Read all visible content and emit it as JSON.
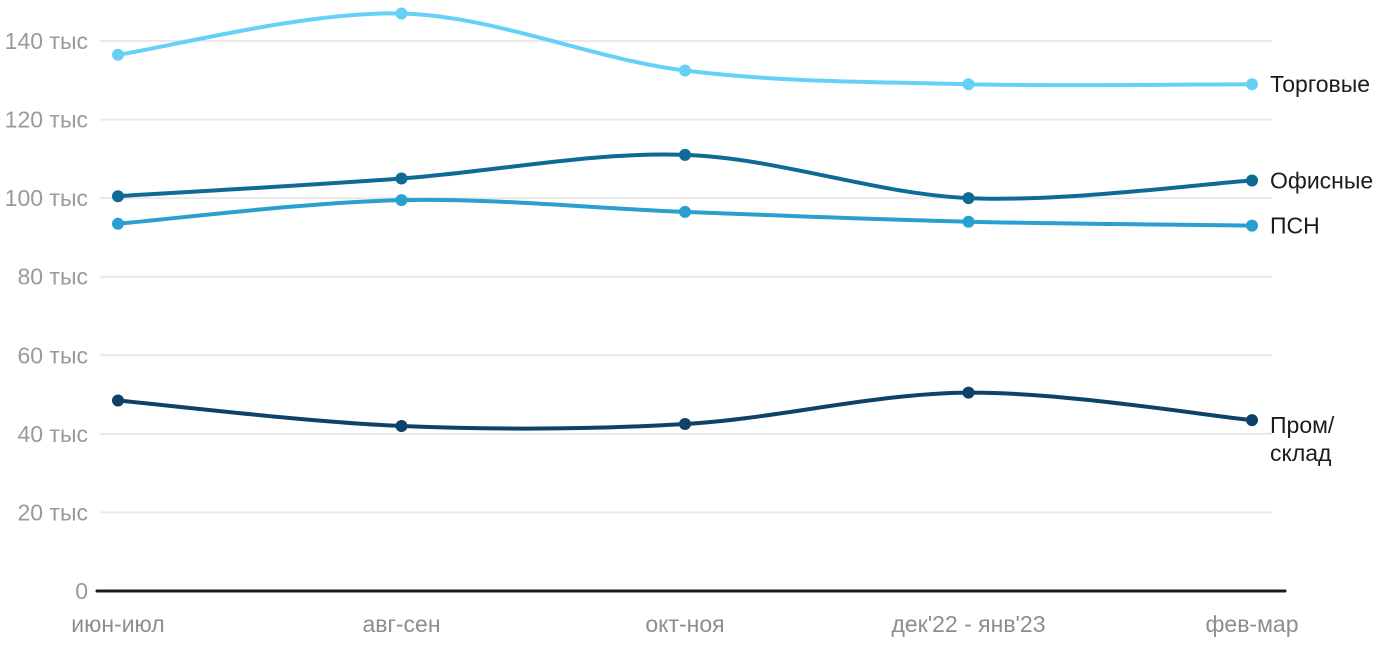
{
  "chart_data": {
    "type": "line",
    "title": "",
    "xlabel": "",
    "ylabel": "",
    "units": "тыс",
    "grid": true,
    "legend_position": "right-of-line-ends",
    "ylim": [
      0,
      150
    ],
    "categories": [
      "июн-июл",
      "авг-сен",
      "окт-ноя",
      "дек'22 - янв'23",
      "фев-мар"
    ],
    "y_ticks": [
      {
        "value": 0,
        "label": "0"
      },
      {
        "value": 20,
        "label": "20 тыс"
      },
      {
        "value": 40,
        "label": "40 тыс"
      },
      {
        "value": 60,
        "label": "60 тыс"
      },
      {
        "value": 80,
        "label": "80 тыс"
      },
      {
        "value": 100,
        "label": "100 тыс"
      },
      {
        "value": 120,
        "label": "120 тыс"
      },
      {
        "value": 140,
        "label": "140 тыс"
      }
    ],
    "series": [
      {
        "id": "torgovye",
        "name": "Торговые",
        "label_lines": [
          "Торговые"
        ],
        "color": "#66D0F5",
        "values": [
          136.5,
          147,
          132.5,
          129,
          129
        ]
      },
      {
        "id": "ofisnye",
        "name": "Офисные",
        "label_lines": [
          "Офисные"
        ],
        "color": "#0F6A94",
        "values": [
          100.5,
          105,
          111,
          100,
          104.5
        ]
      },
      {
        "id": "psn",
        "name": "ПСН",
        "label_lines": [
          "ПСН"
        ],
        "color": "#29A0CF",
        "values": [
          93.5,
          99.5,
          96.5,
          94,
          93
        ]
      },
      {
        "id": "prom-sklad",
        "name": "Пром/склад",
        "label_lines": [
          "Пром/",
          "склад"
        ],
        "color": "#0E4269",
        "values": [
          48.5,
          42,
          42.5,
          50.5,
          43.5
        ]
      }
    ],
    "colors": {
      "background": "#ffffff",
      "gridline": "#e9e9e9",
      "axis_line": "#1a1a1a",
      "y_tick_text": "#9a9a9a",
      "x_tick_text": "#8d8d8d",
      "legend_text": "#1c1c1c"
    }
  }
}
